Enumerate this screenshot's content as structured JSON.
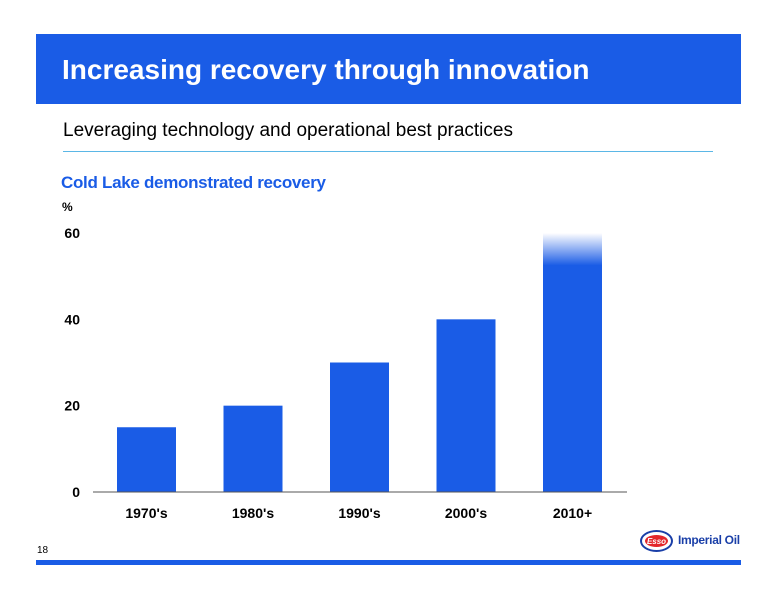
{
  "slide": {
    "title": "Increasing recovery through innovation",
    "subtitle": "Leveraging technology and operational best practices",
    "page_number": "18"
  },
  "logo": {
    "mark_text": "Esso",
    "company": "Imperial Oil"
  },
  "colors": {
    "brand_blue": "#1a5ce6",
    "rule_light_blue": "#5bb7e6",
    "logo_navy": "#1a3fa8",
    "esso_red": "#e3262b"
  },
  "chart_data": {
    "type": "bar",
    "title": "Cold Lake demonstrated recovery",
    "ylabel": "%",
    "xlabel": "",
    "categories": [
      "1970's",
      "1980's",
      "1990's",
      "2000's",
      "2010+"
    ],
    "values": [
      15,
      20,
      30,
      40,
      60
    ],
    "ylim": [
      0,
      60
    ],
    "yticks": [
      0,
      20,
      40,
      60
    ],
    "grid": false,
    "legend": "none",
    "bar_color": "#1a5ce6",
    "last_bar_top_fade": true
  }
}
